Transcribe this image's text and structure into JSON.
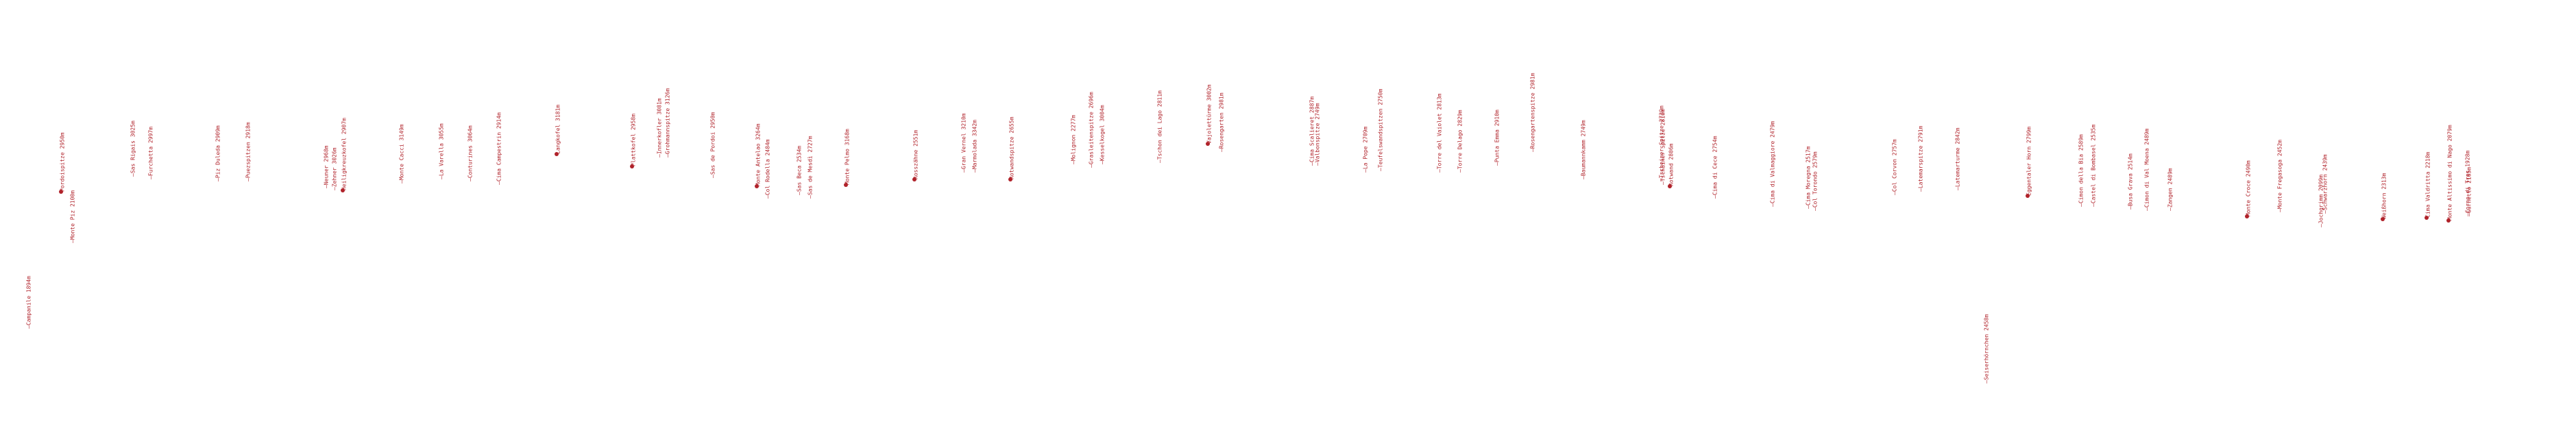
{
  "peaks": [
    {
      "label": "Campanile 1894m",
      "marker": "line"
    },
    {
      "label": "Pordoispitze 2950m",
      "marker": "dot"
    },
    {
      "label": "Monte Piz 2100m",
      "marker": "line"
    },
    {
      "label": "Sas Rigais 3025m",
      "marker": "line"
    },
    {
      "label": "Furchetta 2997m",
      "marker": "line"
    },
    {
      "label": "Piz Duleda 2909m",
      "marker": "line"
    },
    {
      "label": "Puezspitzen 2918m",
      "marker": "line"
    },
    {
      "label": "Neuner 2968m",
      "marker": "line"
    },
    {
      "label": "Zehner 3026m",
      "marker": "line"
    },
    {
      "label": "Heiligkreuzkofel 2907m",
      "marker": "dot"
    },
    {
      "label": "Monte Cacci 3149m",
      "marker": "line"
    },
    {
      "label": "La Varella 3055m",
      "marker": "line"
    },
    {
      "label": "Conturines 3064m",
      "marker": "line"
    },
    {
      "label": "Cima Campestrin 2914m",
      "marker": "line"
    },
    {
      "label": "Langkofel 3181m",
      "marker": "dot"
    },
    {
      "label": "Plattkofel 2958m",
      "marker": "dot"
    },
    {
      "label": "Innerkofler 3081m",
      "marker": "line"
    },
    {
      "label": "Grohmannspitze 3126m",
      "marker": "line"
    },
    {
      "label": "Sas de Pordoi 2950m",
      "marker": "line"
    },
    {
      "label": "Monte Antelao 3264m",
      "marker": "dot"
    },
    {
      "label": "Col Rodella 2484m",
      "marker": "line"
    },
    {
      "label": "Sas Beca 2534m",
      "marker": "line"
    },
    {
      "label": "Sas de Mesdì 2727m",
      "marker": "line"
    },
    {
      "label": "Monte Pelmo 3168m",
      "marker": "dot"
    },
    {
      "label": "Rosszähne 2551m",
      "marker": "dot"
    },
    {
      "label": "Gran Vernel 3210m",
      "marker": "line"
    },
    {
      "label": "Marmolada 3342m",
      "marker": "line"
    },
    {
      "label": "Rotwandspitze 2655m",
      "marker": "dot"
    },
    {
      "label": "Molignon 2277m",
      "marker": "line"
    },
    {
      "label": "Grasleitenspitze 2696m",
      "marker": "line"
    },
    {
      "label": "Kesselkogel 3004m",
      "marker": "line"
    },
    {
      "label": "Tschon dei Lago 2811m",
      "marker": "line"
    },
    {
      "label": "Vajolettürme 3002m",
      "marker": "dot"
    },
    {
      "label": "Rosengarten 2981m",
      "marker": "line"
    },
    {
      "label": "Cima Scalieret 2887m",
      "marker": "line"
    },
    {
      "label": "Valbonspitze 2749m",
      "marker": "line"
    },
    {
      "label": "La Pope 2709m",
      "marker": "line"
    },
    {
      "label": "Teufelswandspitzen 2750m",
      "marker": "line"
    },
    {
      "label": "Torre del Vaiolet 2813m",
      "marker": "line"
    },
    {
      "label": "Torre Delago 2829m",
      "marker": "line"
    },
    {
      "label": "Punta Emma 2910m",
      "marker": "line"
    },
    {
      "label": "Rosengartenspitze 2981m",
      "marker": "line"
    },
    {
      "label": "Baumannkamm 2749m",
      "marker": "line"
    },
    {
      "label": "Tscheiner Spitze 2739m",
      "marker": "line"
    },
    {
      "label": "Tschainer Spitze 2810m",
      "marker": "line"
    },
    {
      "label": "Rotwand 2806m",
      "marker": "dot"
    },
    {
      "label": "Cima di Cece 2754m",
      "marker": "line"
    },
    {
      "label": "Cima di Valmaggiore 2479m",
      "marker": "line"
    },
    {
      "label": "Cima Moregna 2517m",
      "marker": "line"
    },
    {
      "label": "Col Torondo 2579m",
      "marker": "line"
    },
    {
      "label": "Col Corvon 2757m",
      "marker": "line"
    },
    {
      "label": "Latemarspitze 2791m",
      "marker": "line"
    },
    {
      "label": "Latemarturme 2842m",
      "marker": "line"
    },
    {
      "label": "Seiserhörnchen 2458m",
      "marker": "line"
    },
    {
      "label": "Eggentaler Horn 2799m",
      "marker": "dot"
    },
    {
      "label": "Cimon della Bia 2589m",
      "marker": "line"
    },
    {
      "label": "Castel di Bombasel 2535m",
      "marker": "line"
    },
    {
      "label": "Busa Grava 2514m",
      "marker": "line"
    },
    {
      "label": "Cimon di Val Moena 2489m",
      "marker": "line"
    },
    {
      "label": "Zangen 2489m",
      "marker": "line"
    },
    {
      "label": "Monte Croce 2490m",
      "marker": "dot"
    },
    {
      "label": "Monte Fregasoga 2452m",
      "marker": "line"
    },
    {
      "label": "Schwarzhorn 2439m",
      "marker": "line"
    },
    {
      "label": "Jochgrimm 2099m",
      "marker": "line"
    },
    {
      "label": "Weißhorn 2313m",
      "marker": "dot"
    },
    {
      "label": "Cima Valdritta 2218m",
      "marker": "dot"
    },
    {
      "label": "Monte Altissimo di Nago 2079m",
      "marker": "dot"
    },
    {
      "label": "Corno di Tres 1928m",
      "marker": "line"
    },
    {
      "label": "Gurnetto 2165m",
      "marker": "line"
    }
  ],
  "colors": {
    "label": "#b0222a",
    "marker": "#b0222a",
    "background": "#ffffff"
  }
}
